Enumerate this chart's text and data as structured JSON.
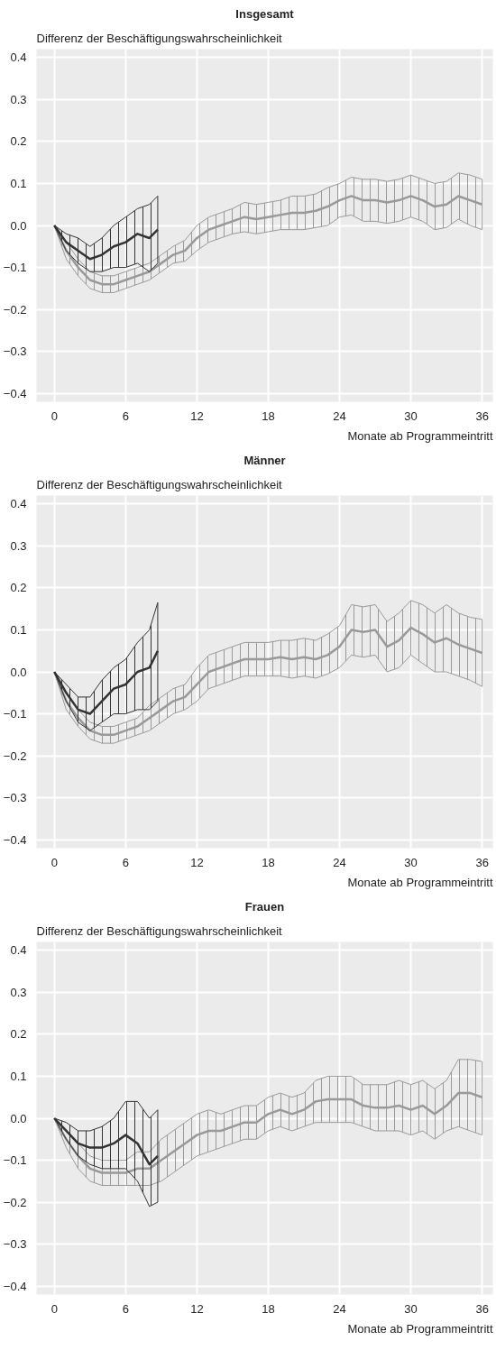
{
  "chart_data": [
    {
      "type": "line",
      "title": "Insgesamt",
      "ylabel": "Differenz der Beschäftigungswahrscheinlichkeit",
      "xlabel": "Monate ab Programmeintritt",
      "xlim": [
        -1.5,
        36.9
      ],
      "ylim": [
        -0.42,
        0.42
      ],
      "xticks": [
        0,
        6,
        12,
        18,
        24,
        30,
        36
      ],
      "yticks": [
        {
          "value": -0.4,
          "label": "−0.4"
        },
        {
          "value": -0.3,
          "label": "−0.3"
        },
        {
          "value": -0.2,
          "label": "−0.2"
        },
        {
          "value": -0.1,
          "label": "−0.1"
        },
        {
          "value": 0,
          "label": "0.0"
        },
        {
          "value": 0.1,
          "label": "0.1"
        },
        {
          "value": 0.2,
          "label": "0.2"
        },
        {
          "value": 0.3,
          "label": "0.3"
        },
        {
          "value": 0.4,
          "label": "0.4"
        }
      ],
      "grid": true,
      "series": [
        {
          "color": "#999999",
          "x": [
            0,
            1,
            2,
            3,
            4,
            5,
            6,
            7,
            8,
            9,
            10,
            11,
            12,
            13,
            14,
            15,
            16,
            17,
            18,
            19,
            20,
            21,
            22,
            23,
            24,
            25,
            26,
            27,
            28,
            29,
            30,
            31,
            32,
            33,
            34,
            35,
            36
          ],
          "values": [
            0,
            -0.06,
            -0.1,
            -0.13,
            -0.14,
            -0.14,
            -0.13,
            -0.12,
            -0.11,
            -0.09,
            -0.07,
            -0.06,
            -0.03,
            -0.01,
            0.0,
            0.01,
            0.02,
            0.015,
            0.02,
            0.025,
            0.03,
            0.03,
            0.035,
            0.045,
            0.06,
            0.07,
            0.06,
            0.06,
            0.055,
            0.06,
            0.07,
            0.06,
            0.045,
            0.05,
            0.07,
            0.06,
            0.05
          ],
          "lower": [
            0,
            -0.08,
            -0.12,
            -0.15,
            -0.16,
            -0.16,
            -0.15,
            -0.14,
            -0.13,
            -0.11,
            -0.09,
            -0.085,
            -0.06,
            -0.04,
            -0.03,
            -0.02,
            -0.015,
            -0.02,
            -0.015,
            -0.01,
            -0.01,
            -0.01,
            -0.005,
            0.0,
            0.02,
            0.025,
            0.01,
            0.01,
            0.005,
            0.01,
            0.02,
            0.01,
            -0.01,
            -0.005,
            0.015,
            0.0,
            -0.01
          ],
          "upper": [
            0,
            -0.04,
            -0.08,
            -0.11,
            -0.12,
            -0.12,
            -0.11,
            -0.1,
            -0.09,
            -0.07,
            -0.05,
            -0.035,
            0.0,
            0.02,
            0.03,
            0.04,
            0.055,
            0.05,
            0.055,
            0.06,
            0.07,
            0.07,
            0.075,
            0.09,
            0.1,
            0.115,
            0.11,
            0.11,
            0.105,
            0.11,
            0.12,
            0.11,
            0.1,
            0.105,
            0.125,
            0.12,
            0.11
          ]
        },
        {
          "color": "#333333",
          "x": [
            0,
            1,
            2,
            3,
            4,
            5,
            6,
            7,
            8,
            8.7
          ],
          "values": [
            0,
            -0.04,
            -0.06,
            -0.08,
            -0.07,
            -0.05,
            -0.04,
            -0.02,
            -0.03,
            -0.01
          ],
          "lower": [
            0,
            -0.06,
            -0.09,
            -0.11,
            -0.11,
            -0.1,
            -0.1,
            -0.09,
            -0.11,
            -0.09
          ],
          "upper": [
            0,
            -0.02,
            -0.03,
            -0.05,
            -0.03,
            0.0,
            0.02,
            0.04,
            0.05,
            0.07
          ]
        }
      ]
    },
    {
      "type": "line",
      "title": "Männer",
      "ylabel": "Differenz der Beschäftigungswahrscheinlichkeit",
      "xlabel": "Monate ab Programmeintritt",
      "xlim": [
        -1.5,
        36.9
      ],
      "ylim": [
        -0.42,
        0.42
      ],
      "xticks": [
        0,
        6,
        12,
        18,
        24,
        30,
        36
      ],
      "yticks": [
        {
          "value": -0.4,
          "label": "−0.4"
        },
        {
          "value": -0.3,
          "label": "−0.3"
        },
        {
          "value": -0.2,
          "label": "−0.2"
        },
        {
          "value": -0.1,
          "label": "−0.1"
        },
        {
          "value": 0,
          "label": "0.0"
        },
        {
          "value": 0.1,
          "label": "0.1"
        },
        {
          "value": 0.2,
          "label": "0.2"
        },
        {
          "value": 0.3,
          "label": "0.3"
        },
        {
          "value": 0.4,
          "label": "0.4"
        }
      ],
      "grid": true,
      "series": [
        {
          "color": "#999999",
          "x": [
            0,
            1,
            2,
            3,
            4,
            5,
            6,
            7,
            8,
            9,
            10,
            11,
            12,
            13,
            14,
            15,
            16,
            17,
            18,
            19,
            20,
            21,
            22,
            23,
            24,
            25,
            26,
            27,
            28,
            29,
            30,
            31,
            32,
            33,
            34,
            35,
            36
          ],
          "values": [
            0,
            -0.07,
            -0.11,
            -0.14,
            -0.15,
            -0.15,
            -0.14,
            -0.13,
            -0.11,
            -0.09,
            -0.07,
            -0.06,
            -0.03,
            0.0,
            0.01,
            0.02,
            0.03,
            0.03,
            0.03,
            0.035,
            0.03,
            0.035,
            0.03,
            0.04,
            0.06,
            0.1,
            0.095,
            0.1,
            0.06,
            0.075,
            0.105,
            0.09,
            0.07,
            0.08,
            0.065,
            0.055,
            0.045
          ],
          "lower": [
            0,
            -0.09,
            -0.13,
            -0.16,
            -0.17,
            -0.17,
            -0.16,
            -0.15,
            -0.14,
            -0.12,
            -0.1,
            -0.09,
            -0.07,
            -0.04,
            -0.03,
            -0.02,
            -0.01,
            -0.01,
            -0.01,
            -0.01,
            -0.015,
            -0.01,
            -0.015,
            -0.005,
            0.01,
            0.04,
            0.035,
            0.04,
            0.0,
            0.01,
            0.04,
            0.02,
            0.0,
            0.0,
            -0.01,
            -0.02,
            -0.035
          ],
          "upper": [
            0,
            -0.05,
            -0.09,
            -0.12,
            -0.13,
            -0.13,
            -0.12,
            -0.11,
            -0.08,
            -0.06,
            -0.04,
            -0.03,
            0.01,
            0.04,
            0.05,
            0.06,
            0.07,
            0.07,
            0.07,
            0.075,
            0.075,
            0.08,
            0.075,
            0.09,
            0.11,
            0.16,
            0.155,
            0.16,
            0.12,
            0.14,
            0.17,
            0.16,
            0.14,
            0.16,
            0.14,
            0.13,
            0.125
          ]
        },
        {
          "color": "#333333",
          "x": [
            0,
            1,
            2,
            3,
            4,
            5,
            6,
            7,
            8,
            8.7
          ],
          "values": [
            0,
            -0.05,
            -0.09,
            -0.1,
            -0.07,
            -0.04,
            -0.03,
            0.0,
            0.01,
            0.05
          ],
          "lower": [
            0,
            -0.07,
            -0.12,
            -0.14,
            -0.12,
            -0.1,
            -0.1,
            -0.09,
            -0.09,
            -0.07
          ],
          "upper": [
            0,
            -0.03,
            -0.06,
            -0.06,
            -0.02,
            0.01,
            0.03,
            0.07,
            0.1,
            0.165
          ]
        }
      ]
    },
    {
      "type": "line",
      "title": "Frauen",
      "ylabel": "Differenz der Beschäftigungswahrscheinlichkeit",
      "xlabel": "Monate ab Programmeintritt",
      "xlim": [
        -1.5,
        36.9
      ],
      "ylim": [
        -0.42,
        0.42
      ],
      "xticks": [
        0,
        6,
        12,
        18,
        24,
        30,
        36
      ],
      "yticks": [
        {
          "value": -0.4,
          "label": "−0.4"
        },
        {
          "value": -0.3,
          "label": "−0.3"
        },
        {
          "value": -0.2,
          "label": "−0.2"
        },
        {
          "value": -0.1,
          "label": "−0.1"
        },
        {
          "value": 0,
          "label": "0.0"
        },
        {
          "value": 0.1,
          "label": "0.1"
        },
        {
          "value": 0.2,
          "label": "0.2"
        },
        {
          "value": 0.3,
          "label": "0.3"
        },
        {
          "value": 0.4,
          "label": "0.4"
        }
      ],
      "grid": true,
      "series": [
        {
          "color": "#999999",
          "x": [
            0,
            1,
            2,
            3,
            4,
            5,
            6,
            7,
            8,
            9,
            10,
            11,
            12,
            13,
            14,
            15,
            16,
            17,
            18,
            19,
            20,
            21,
            22,
            23,
            24,
            25,
            26,
            27,
            28,
            29,
            30,
            31,
            32,
            33,
            34,
            35,
            36
          ],
          "values": [
            0,
            -0.05,
            -0.09,
            -0.12,
            -0.13,
            -0.13,
            -0.13,
            -0.12,
            -0.12,
            -0.1,
            -0.08,
            -0.06,
            -0.04,
            -0.03,
            -0.03,
            -0.02,
            -0.01,
            -0.01,
            0.01,
            0.02,
            0.01,
            0.02,
            0.04,
            0.045,
            0.045,
            0.045,
            0.03,
            0.025,
            0.025,
            0.03,
            0.02,
            0.03,
            0.01,
            0.03,
            0.06,
            0.06,
            0.05
          ],
          "lower": [
            0,
            -0.07,
            -0.12,
            -0.15,
            -0.16,
            -0.16,
            -0.16,
            -0.16,
            -0.16,
            -0.15,
            -0.13,
            -0.11,
            -0.09,
            -0.08,
            -0.07,
            -0.06,
            -0.05,
            -0.05,
            -0.03,
            -0.02,
            -0.03,
            -0.02,
            -0.01,
            -0.01,
            -0.01,
            -0.01,
            -0.02,
            -0.03,
            -0.03,
            -0.03,
            -0.04,
            -0.03,
            -0.05,
            -0.03,
            -0.02,
            -0.03,
            -0.04
          ],
          "upper": [
            0,
            -0.03,
            -0.06,
            -0.09,
            -0.1,
            -0.1,
            -0.1,
            -0.08,
            -0.08,
            -0.05,
            -0.03,
            -0.01,
            0.01,
            0.02,
            0.01,
            0.02,
            0.03,
            0.03,
            0.05,
            0.06,
            0.05,
            0.06,
            0.09,
            0.1,
            0.1,
            0.1,
            0.08,
            0.08,
            0.08,
            0.09,
            0.08,
            0.09,
            0.07,
            0.09,
            0.14,
            0.14,
            0.135
          ]
        },
        {
          "color": "#333333",
          "x": [
            0,
            1,
            2,
            3,
            4,
            5,
            6,
            7,
            8,
            8.7
          ],
          "values": [
            0,
            -0.03,
            -0.06,
            -0.07,
            -0.07,
            -0.06,
            -0.04,
            -0.06,
            -0.11,
            -0.09
          ],
          "lower": [
            0,
            -0.05,
            -0.09,
            -0.11,
            -0.12,
            -0.12,
            -0.12,
            -0.15,
            -0.21,
            -0.2
          ],
          "upper": [
            0,
            -0.01,
            -0.03,
            -0.03,
            -0.02,
            0.0,
            0.04,
            0.04,
            0.0,
            0.02
          ]
        }
      ]
    }
  ]
}
